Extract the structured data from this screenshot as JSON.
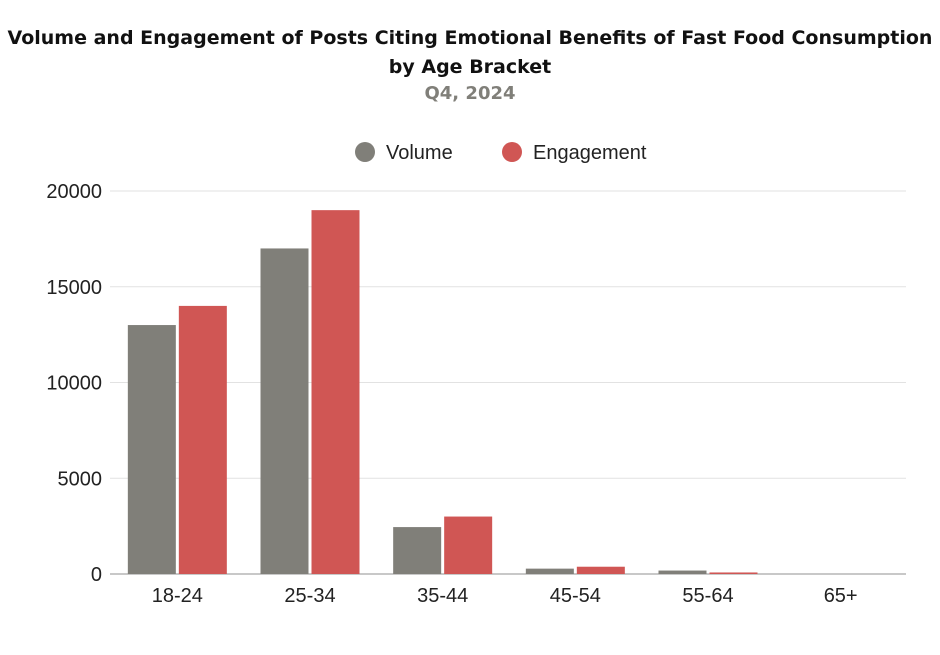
{
  "chart_data": {
    "type": "bar",
    "title": "Volume and Engagement of Posts Citing Emotional Benefits of Fast Food Consumption by Age Bracket",
    "subtitle": "Q4, 2024",
    "xlabel": "",
    "ylabel": "",
    "categories": [
      "18-24",
      "25-34",
      "35-44",
      "45-54",
      "55-64",
      "65+"
    ],
    "series": [
      {
        "name": "Volume",
        "color": "#807f79",
        "values": [
          13000,
          17000,
          2450,
          280,
          180,
          0
        ]
      },
      {
        "name": "Engagement",
        "color": "#d05654",
        "values": [
          14000,
          19000,
          3000,
          380,
          80,
          0
        ]
      }
    ],
    "ylim": [
      0,
      20000
    ],
    "yticks": [
      "0",
      "5000",
      "10000",
      "15000",
      "20000"
    ],
    "ytick_values": [
      0,
      5000,
      10000,
      15000,
      20000
    ],
    "grid": true,
    "legend_position": "top-center"
  }
}
